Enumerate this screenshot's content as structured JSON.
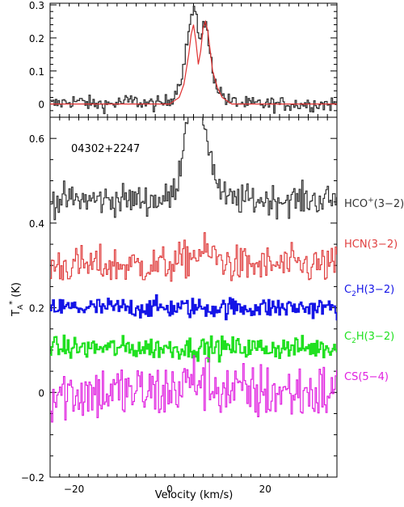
{
  "chart_data": [
    {
      "type": "line",
      "panel": "top",
      "xlim": [
        -25,
        35
      ],
      "ylim": [
        -0.04,
        0.305
      ],
      "yticks": [
        "0",
        "0.1",
        "0.2",
        "0.3"
      ],
      "series": [
        {
          "color": "#333333",
          "style": "histogram",
          "x": [
            -24,
            -20,
            -16,
            -12,
            -8,
            -4,
            -2,
            0,
            1,
            2,
            3,
            4,
            4.5,
            5,
            5.5,
            6,
            6.5,
            7,
            7.5,
            8,
            9,
            10,
            12,
            16,
            20,
            24,
            28,
            32,
            35
          ],
          "y": [
            0.0,
            0.01,
            0.0,
            0.0,
            0.01,
            0.0,
            0.0,
            0.01,
            0.03,
            0.06,
            0.12,
            0.22,
            0.26,
            0.29,
            0.27,
            0.2,
            0.21,
            0.24,
            0.25,
            0.2,
            0.1,
            0.05,
            0.01,
            0.0,
            0.0,
            0.0,
            0.0,
            0.0,
            0.0
          ]
        },
        {
          "color": "#e03030",
          "style": "line",
          "x": [
            -25,
            -5,
            0,
            1,
            2,
            3,
            4,
            4.5,
            5,
            5.5,
            6,
            6.5,
            7,
            7.5,
            8,
            8.5,
            9,
            10,
            11,
            13,
            16,
            35
          ],
          "y": [
            0.0,
            0.0,
            0.0,
            0.01,
            0.02,
            0.06,
            0.15,
            0.21,
            0.24,
            0.19,
            0.12,
            0.16,
            0.23,
            0.25,
            0.22,
            0.16,
            0.1,
            0.05,
            0.02,
            0.0,
            0.0,
            0.0
          ]
        }
      ]
    },
    {
      "type": "line",
      "panel": "bottom",
      "xlim": [
        -25,
        35
      ],
      "ylim": [
        -0.2,
        0.65
      ],
      "xticks": [
        "−20",
        "0",
        "20"
      ],
      "yticks": [
        "−0.2",
        "0",
        "0.2",
        "0.4",
        "0.6"
      ],
      "xlabel": "Velocity  (km/s)",
      "ylabel": "T",
      "ylabel_sup": "*",
      "ylabel_sub": "A",
      "ylabel_unit": " (K)",
      "annotation": "04302+2247",
      "series": [
        {
          "name_base": "HCO",
          "name_sup": "+",
          "name_rest": "(3−2)",
          "color": "#333333",
          "baseline": 0.455,
          "noise": 0.018,
          "peak": {
            "center": 5.2,
            "amp": 0.28,
            "width": 1.9,
            "dip_center": 6.0,
            "dip_amp": 0.02,
            "dip_width": 0.6,
            "shoulder_center": 8.5,
            "shoulder_amp": 0.05,
            "shoulder_width": 1.4
          }
        },
        {
          "name_base": "HCN",
          "name_sub": "",
          "name_rest": "(3−2)",
          "color": "#e04040",
          "baseline": 0.3,
          "noise": 0.022,
          "peak": {
            "center": 7,
            "amp": 0.03,
            "width": 3
          }
        },
        {
          "name_base": "C",
          "name_sub": "2",
          "name_rest": "H(3−2)",
          "color": "#1414e6",
          "baseline": 0.2,
          "noise": 0.012
        },
        {
          "name_base": "C",
          "name_sub": "2",
          "name_rest": "H(3−2)",
          "color": "#20e020",
          "baseline": 0.105,
          "noise": 0.013
        },
        {
          "name_base": "CS",
          "name_sub": "",
          "name_rest": "(5−4)",
          "color": "#e020e0",
          "baseline": 0.0,
          "noise": 0.035,
          "peak": {
            "center": 6,
            "amp": 0.03,
            "width": 3
          }
        }
      ]
    }
  ]
}
